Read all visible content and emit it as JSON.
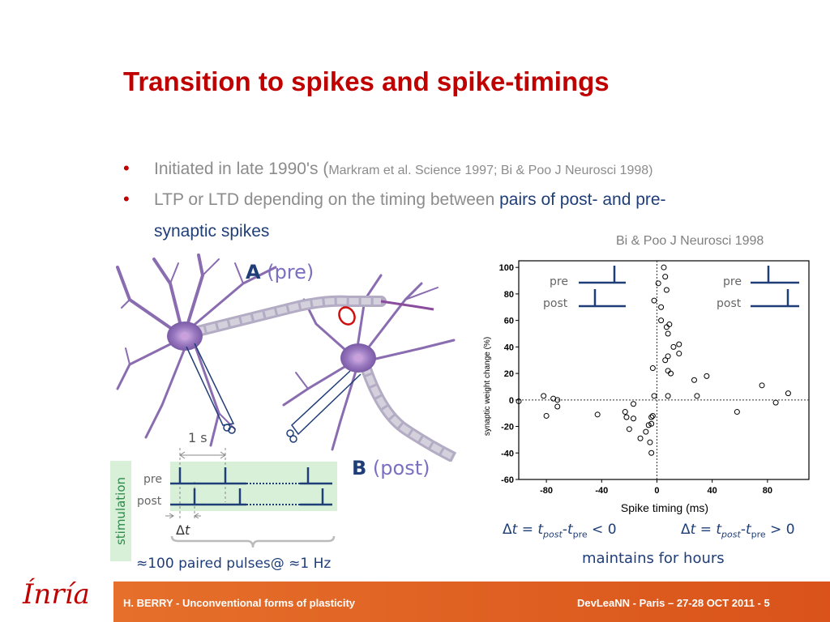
{
  "title": "Transition to spikes and spike-timings",
  "bullets": [
    {
      "main": "Initiated in late 1990's (",
      "ref": "Markram et al. Science 1997; Bi & Poo J Neurosci 1998)"
    },
    {
      "main": "LTP or LTD depending on the timing between ",
      "highlight1": "pairs of post- and pre-",
      "highlight2": "synaptic spikes"
    }
  ],
  "citation": "Bi & Poo J Neurosci 1998",
  "neuron_labels": {
    "a_letter": "A",
    "a_text": " (pre)",
    "b_letter": "B",
    "b_text": " (post)"
  },
  "stimulation": {
    "label": "stimulation",
    "interval": "1 s",
    "pre": "pre",
    "post": "post",
    "dt_delta": "Δ",
    "dt_t": "t",
    "pairs": "≈100 paired pulses@ ≈1 Hz"
  },
  "inset_left": {
    "pre": "pre",
    "post": "post"
  },
  "inset_right": {
    "pre": "pre",
    "post": "post"
  },
  "formula_left": {
    "d": "Δ",
    "t": "t",
    "eq": " = ",
    "t1": "t",
    "s1": "post",
    "minus": "-",
    "t2": "t",
    "s2": "pre",
    "rel": " < 0"
  },
  "formula_right": {
    "d": "Δ",
    "t": "t",
    "eq": " = ",
    "t1": "t",
    "s1": "post",
    "minus": "-",
    "t2": "t",
    "s2": "pre",
    "rel": " > 0"
  },
  "maintains": "maintains for hours",
  "footer": {
    "left": "H. BERRY - Unconventional forms of plasticity",
    "right": "DevLeaNN - Paris – 27-28 OCT 2011 - 5",
    "logo": "Ínría"
  },
  "chart_data": {
    "type": "scatter",
    "xlabel": "Spike timing (ms)",
    "ylabel": "synaptic weight change (%)",
    "xlim": [
      -100,
      110
    ],
    "ylim": [
      -60,
      105
    ],
    "xticks": [
      -80,
      -40,
      0,
      40,
      80
    ],
    "yticks": [
      -60,
      -40,
      -20,
      0,
      20,
      40,
      60,
      80,
      100
    ],
    "points": [
      [
        -100,
        -1
      ],
      [
        -82,
        3
      ],
      [
        -80,
        -12
      ],
      [
        -75,
        1
      ],
      [
        -72,
        0
      ],
      [
        -72,
        -5
      ],
      [
        -43,
        -11
      ],
      [
        -23,
        -9
      ],
      [
        -22,
        -13
      ],
      [
        -20,
        -22
      ],
      [
        -17,
        -3
      ],
      [
        -17,
        -14
      ],
      [
        -12,
        -29
      ],
      [
        -8,
        -24
      ],
      [
        -6,
        -19
      ],
      [
        -5,
        -32
      ],
      [
        -4,
        -40
      ],
      [
        -4,
        -13
      ],
      [
        -3,
        -12
      ],
      [
        -4,
        -18
      ],
      [
        -2,
        75
      ],
      [
        1,
        88
      ],
      [
        3,
        70
      ],
      [
        3,
        60
      ],
      [
        5,
        100
      ],
      [
        6,
        93
      ],
      [
        7,
        83
      ],
      [
        7,
        55
      ],
      [
        8,
        50
      ],
      [
        9,
        57
      ],
      [
        6,
        30
      ],
      [
        8,
        33
      ],
      [
        8,
        22
      ],
      [
        10,
        20
      ],
      [
        12,
        40
      ],
      [
        16,
        42
      ],
      [
        16,
        35
      ],
      [
        -3,
        24
      ],
      [
        -2,
        3
      ],
      [
        8,
        3
      ],
      [
        27,
        15
      ],
      [
        29,
        3
      ],
      [
        36,
        18
      ],
      [
        58,
        -9
      ],
      [
        76,
        11
      ],
      [
        86,
        -2
      ],
      [
        95,
        5
      ]
    ]
  }
}
